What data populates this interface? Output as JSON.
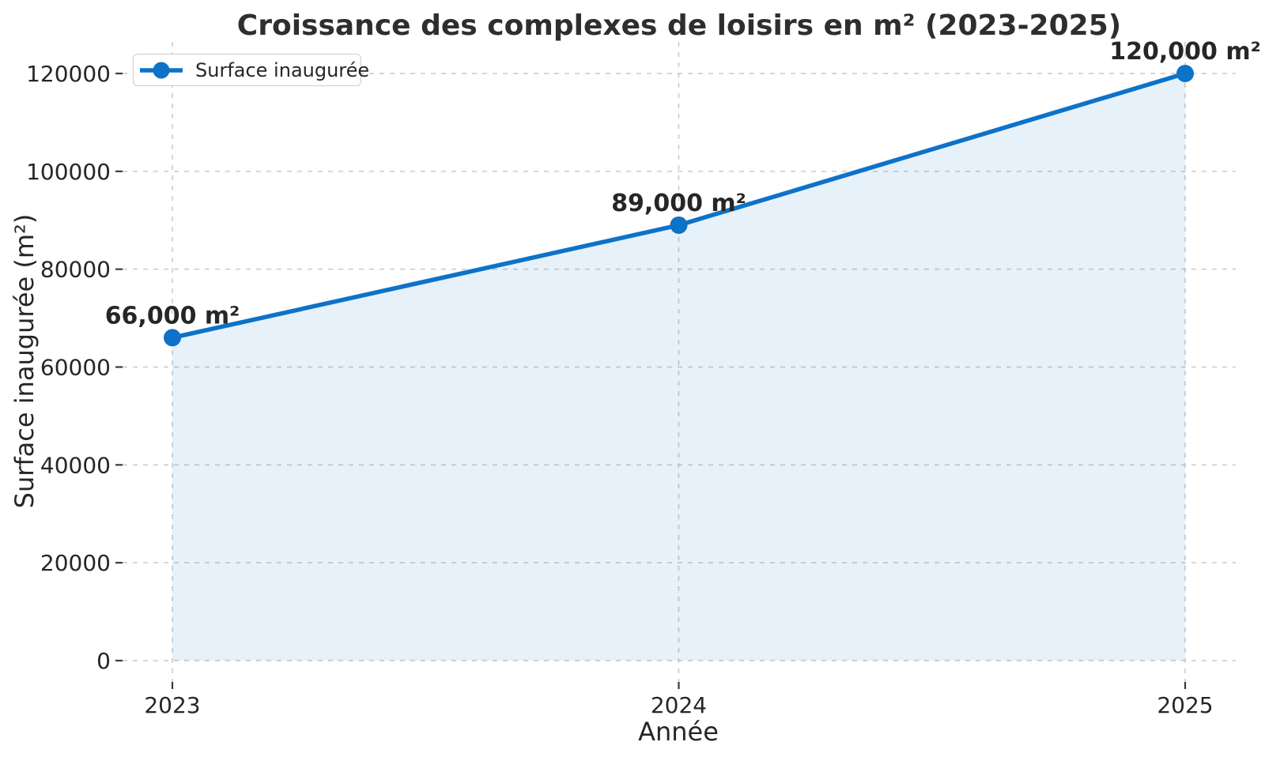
{
  "title": "Croissance des complexes de loisirs en m² (2023-2025)",
  "legend": {
    "label": "Surface inaugurée"
  },
  "chart_data": {
    "type": "line",
    "title": "Croissance des complexes de loisirs en m² (2023-2025)",
    "xlabel": "Année",
    "ylabel": "Surface inaugurée (m²)",
    "x": [
      2023,
      2024,
      2025
    ],
    "series": [
      {
        "name": "Surface inaugurée",
        "values": [
          66000,
          89000,
          120000
        ]
      }
    ],
    "point_labels": [
      "66,000 m²",
      "89,000 m²",
      "120,000 m²"
    ],
    "xticks": [
      2023,
      2024,
      2025
    ],
    "xtick_labels": [
      "2023",
      "2024",
      "2025"
    ],
    "yticks": [
      0,
      20000,
      40000,
      60000,
      80000,
      100000,
      120000
    ],
    "ytick_labels": [
      "0",
      "20000",
      "40000",
      "60000",
      "80000",
      "100000",
      "120000"
    ],
    "ylim": [
      0,
      120000
    ],
    "grid": "dashed-both-axes",
    "area_fill_to_zero": true,
    "legend_position": "upper-left",
    "colors": {
      "line": "#0d72c8",
      "marker": "#0d72c8",
      "fill": "rgba(13,114,200,0.10)",
      "grid": "#c9c9c9",
      "tick_mark": "#3a3a3a",
      "text": "#262626",
      "title": "#2e2e2e",
      "legend_border": "#cccccc",
      "background": "#ffffff"
    }
  }
}
